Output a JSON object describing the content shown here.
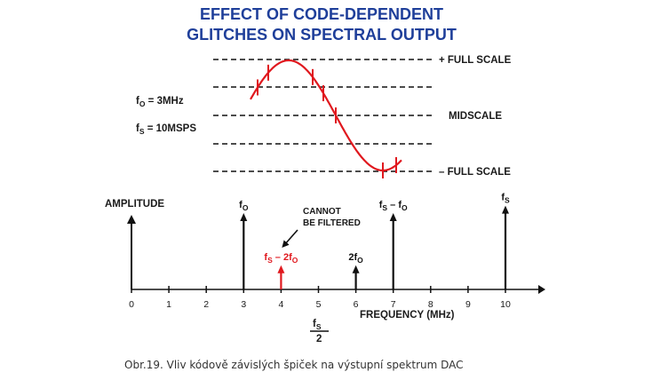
{
  "title": {
    "line1": "EFFECT OF CODE-DEPENDENT",
    "line2": "GLITCHES ON SPECTRAL OUTPUT"
  },
  "waveform": {
    "fo": {
      "main": "f",
      "sub": "O",
      "rest": " = 3MHz"
    },
    "fs": {
      "main": "f",
      "sub": "S",
      "rest": " = 10MSPS"
    },
    "levels": {
      "plus_full_scale": "+ FULL SCALE",
      "midscale": "MIDSCALE",
      "minus_full_scale": "– FULL SCALE"
    },
    "colors": {
      "sine": "#e0181e",
      "dashes": "#111111"
    }
  },
  "spectrum": {
    "ylabel": "AMPLITUDE",
    "xlabel": "FREQUENCY (MHz)",
    "xticks": [
      "0",
      "1",
      "2",
      "3",
      "4",
      "5",
      "6",
      "7",
      "8",
      "9",
      "10"
    ],
    "xmin": 0,
    "xmax": 10.6,
    "annotation": [
      "CANNOT",
      "BE FILTERED"
    ],
    "half_fs": {
      "num_main": "f",
      "num_sub": "S",
      "den": "2"
    },
    "lines": [
      {
        "x": 3,
        "amplitude": 1.0,
        "color": "#111111",
        "parts": [
          "f",
          "O"
        ]
      },
      {
        "x": 4,
        "amplitude": 0.3,
        "color": "#e0181e",
        "parts": [
          "f",
          "S",
          " – 2f",
          "O"
        ]
      },
      {
        "x": 6,
        "amplitude": 0.3,
        "color": "#111111",
        "parts": [
          "2f",
          "O"
        ]
      },
      {
        "x": 7,
        "amplitude": 1.0,
        "color": "#111111",
        "parts": [
          "f",
          "S",
          " – f",
          "O"
        ]
      },
      {
        "x": 10,
        "amplitude": 1.1,
        "color": "#111111",
        "parts": [
          "f",
          "S"
        ]
      }
    ]
  },
  "caption": "Obr.19. Vliv kódově závislých špiček na výstupní spektrum DAC"
}
